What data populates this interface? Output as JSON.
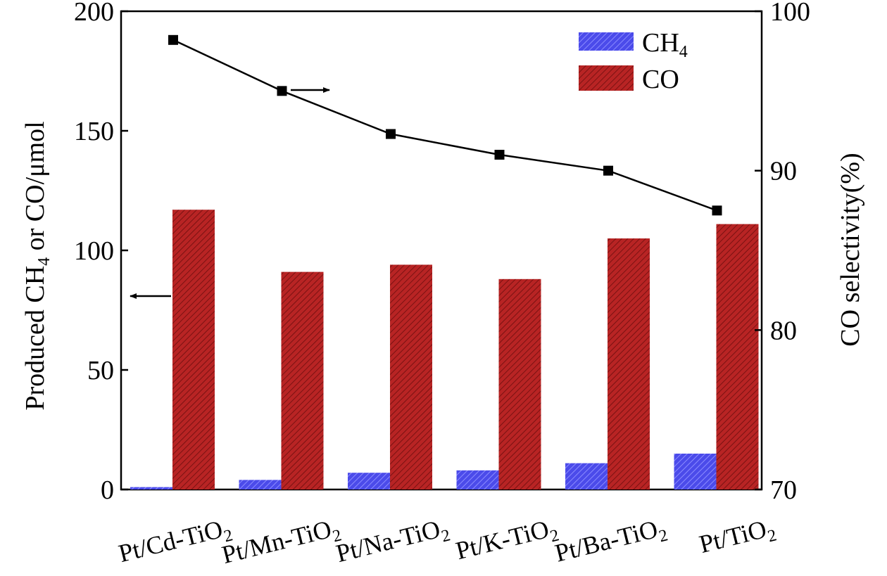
{
  "chart_data": {
    "type": "bar",
    "categories": [
      "Pt/Cd-TiO",
      "Pt/Mn-TiO",
      "Pt/Na-TiO",
      "Pt/K-TiO",
      "Pt/Ba-TiO",
      "Pt/TiO"
    ],
    "category_subscript": "2",
    "series": [
      {
        "name": "CH",
        "subscript": "4",
        "axis": "left",
        "values": [
          1,
          4,
          7,
          8,
          11,
          15
        ],
        "color": "#4a4ae8"
      },
      {
        "name": "CO",
        "axis": "left",
        "values": [
          117,
          91,
          94,
          88,
          105,
          111
        ],
        "color": "#b22222"
      }
    ],
    "line_series": {
      "name": "CO selectivity",
      "axis": "right",
      "values": [
        98.2,
        95.0,
        92.3,
        91.0,
        90.0,
        87.5
      ],
      "color": "#000000"
    },
    "left_axis": {
      "label_pre": "Produced CH",
      "label_sub": "4",
      "label_post": " or CO/μmol",
      "ylim": [
        0,
        200
      ],
      "ticks": [
        "0",
        "50",
        "100",
        "150",
        "200"
      ]
    },
    "right_axis": {
      "label": "CO selectivity(%)",
      "ylim": [
        70,
        100
      ],
      "ticks": [
        "70",
        "80",
        "90",
        "100"
      ]
    },
    "legend": {
      "position": "top-right",
      "entries": [
        {
          "label": "CH",
          "sub": "4"
        },
        {
          "label": "CO",
          "sub": ""
        }
      ]
    }
  }
}
